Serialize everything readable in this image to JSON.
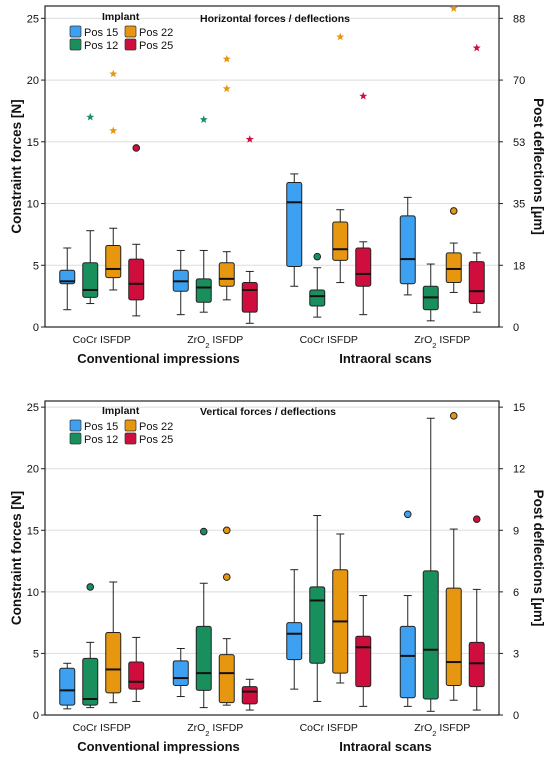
{
  "colors": {
    "Pos 15": "#3da0f0",
    "Pos 12": "#1a8f5e",
    "Pos 22": "#e6960f",
    "Pos 25": "#cf0e3e",
    "axis": "#222222",
    "grid": "#dddddd"
  },
  "chart_data": [
    {
      "type": "box",
      "title": "Horizontal forces / deflections",
      "legend_title": "Implant",
      "legend": [
        "Pos 15",
        "Pos 12",
        "Pos 22",
        "Pos 25"
      ],
      "ylabel": "Constraint forces [N]",
      "y2label": "Post deflections [µm]",
      "ylim": [
        0,
        26
      ],
      "yticks": [
        0,
        5,
        10,
        15,
        20,
        25
      ],
      "y2ticks": [
        "0",
        "18",
        "35",
        "53",
        "70",
        "88"
      ],
      "grid": true,
      "categories": [
        "CoCr ISFDP",
        "ZrO2 ISFDP",
        "CoCr ISFDP",
        "ZrO2 ISFDP"
      ],
      "category_labels": [
        {
          "main": "CoCr ISFDP",
          "sub": "",
          "rest": ""
        },
        {
          "main": "ZrO",
          "sub": "2",
          "rest": " ISFDP"
        },
        {
          "main": "CoCr ISFDP",
          "sub": "",
          "rest": ""
        },
        {
          "main": "ZrO",
          "sub": "2",
          "rest": " ISFDP"
        }
      ],
      "groups": [
        "Conventional impressions",
        "Intraoral scans"
      ],
      "series": [
        {
          "name": "Pos 15",
          "boxes": [
            {
              "min": 1.4,
              "q1": 3.5,
              "median": 3.7,
              "q3": 4.6,
              "max": 6.4,
              "outliers": []
            },
            {
              "min": 1.0,
              "q1": 2.9,
              "median": 3.7,
              "q3": 4.6,
              "max": 6.2,
              "outliers": []
            },
            {
              "min": 3.3,
              "q1": 4.9,
              "median": 10.1,
              "q3": 11.7,
              "max": 12.4,
              "outliers": []
            },
            {
              "min": 2.6,
              "q1": 3.5,
              "median": 5.5,
              "q3": 9.0,
              "max": 10.5,
              "outliers": []
            }
          ]
        },
        {
          "name": "Pos 12",
          "boxes": [
            {
              "min": 1.9,
              "q1": 2.4,
              "median": 3.0,
              "q3": 5.2,
              "max": 7.8,
              "outliers": [
                {
                  "value": 17.0,
                  "marker": "star"
                }
              ]
            },
            {
              "min": 1.2,
              "q1": 2.0,
              "median": 3.2,
              "q3": 3.9,
              "max": 6.2,
              "outliers": [
                {
                  "value": 16.8,
                  "marker": "star"
                }
              ]
            },
            {
              "min": 0.8,
              "q1": 1.7,
              "median": 2.5,
              "q3": 3.0,
              "max": 4.8,
              "outliers": [
                {
                  "value": 5.7,
                  "marker": "circle"
                }
              ]
            },
            {
              "min": 0.5,
              "q1": 1.4,
              "median": 2.4,
              "q3": 3.3,
              "max": 5.1,
              "outliers": []
            }
          ]
        },
        {
          "name": "Pos 22",
          "boxes": [
            {
              "min": 3.0,
              "q1": 4.0,
              "median": 4.7,
              "q3": 6.6,
              "max": 8.0,
              "outliers": [
                {
                  "value": 20.5,
                  "marker": "star"
                },
                {
                  "value": 15.9,
                  "marker": "star"
                }
              ]
            },
            {
              "min": 2.2,
              "q1": 3.3,
              "median": 3.9,
              "q3": 5.2,
              "max": 6.1,
              "outliers": [
                {
                  "value": 21.7,
                  "marker": "star"
                },
                {
                  "value": 19.3,
                  "marker": "star"
                }
              ]
            },
            {
              "min": 3.6,
              "q1": 5.4,
              "median": 6.3,
              "q3": 8.5,
              "max": 9.5,
              "outliers": [
                {
                  "value": 23.5,
                  "marker": "star"
                }
              ]
            },
            {
              "min": 2.8,
              "q1": 3.6,
              "median": 4.7,
              "q3": 6.0,
              "max": 6.8,
              "outliers": [
                {
                  "value": 9.4,
                  "marker": "circle"
                },
                {
                  "value": 25.8,
                  "marker": "star"
                }
              ]
            }
          ]
        },
        {
          "name": "Pos 25",
          "boxes": [
            {
              "min": 0.9,
              "q1": 2.2,
              "median": 3.5,
              "q3": 5.5,
              "max": 6.7,
              "outliers": [
                {
                  "value": 14.5,
                  "marker": "circle"
                }
              ]
            },
            {
              "min": 0.3,
              "q1": 1.2,
              "median": 3.0,
              "q3": 3.6,
              "max": 4.5,
              "outliers": [
                {
                  "value": 15.2,
                  "marker": "star"
                }
              ]
            },
            {
              "min": 1.0,
              "q1": 3.3,
              "median": 4.3,
              "q3": 6.4,
              "max": 6.9,
              "outliers": [
                {
                  "value": 18.7,
                  "marker": "star"
                }
              ]
            },
            {
              "min": 1.2,
              "q1": 1.9,
              "median": 2.9,
              "q3": 5.3,
              "max": 6.0,
              "outliers": [
                {
                  "value": 22.6,
                  "marker": "star"
                }
              ]
            }
          ]
        }
      ]
    },
    {
      "type": "box",
      "title": "Vertical forces / deflections",
      "legend_title": "Implant",
      "legend": [
        "Pos 15",
        "Pos 12",
        "Pos 22",
        "Pos 25"
      ],
      "ylabel": "Constraint forces [N]",
      "y2label": "Post deflections [µm]",
      "ylim": [
        0,
        25.5
      ],
      "yticks": [
        0,
        5,
        10,
        15,
        20,
        25
      ],
      "y2ticks": [
        "0",
        "3",
        "6",
        "9",
        "12",
        "15"
      ],
      "grid": true,
      "categories": [
        "CoCr ISFDP",
        "ZrO2 ISFDP",
        "CoCr ISFDP",
        "ZrO2 ISFDP"
      ],
      "category_labels": [
        {
          "main": "CoCr ISFDP",
          "sub": "",
          "rest": ""
        },
        {
          "main": "ZrO",
          "sub": "2",
          "rest": " ISFDP"
        },
        {
          "main": "CoCr ISFDP",
          "sub": "",
          "rest": ""
        },
        {
          "main": "ZrO",
          "sub": "2",
          "rest": " ISFDP"
        }
      ],
      "groups": [
        "Conventional impressions",
        "Intraoral scans"
      ],
      "series": [
        {
          "name": "Pos 15",
          "boxes": [
            {
              "min": 0.5,
              "q1": 0.8,
              "median": 2.0,
              "q3": 3.8,
              "max": 4.2,
              "outliers": []
            },
            {
              "min": 1.5,
              "q1": 2.4,
              "median": 3.0,
              "q3": 4.4,
              "max": 5.4,
              "outliers": []
            },
            {
              "min": 2.1,
              "q1": 4.5,
              "median": 6.6,
              "q3": 7.5,
              "max": 11.8,
              "outliers": []
            },
            {
              "min": 0.7,
              "q1": 1.4,
              "median": 4.8,
              "q3": 7.2,
              "max": 9.7,
              "outliers": [
                {
                  "value": 16.3,
                  "marker": "circle"
                }
              ]
            }
          ]
        },
        {
          "name": "Pos 12",
          "boxes": [
            {
              "min": 0.6,
              "q1": 0.8,
              "median": 1.3,
              "q3": 4.6,
              "max": 5.9,
              "outliers": [
                {
                  "value": 10.4,
                  "marker": "circle"
                }
              ]
            },
            {
              "min": 0.6,
              "q1": 2.0,
              "median": 3.4,
              "q3": 7.2,
              "max": 10.7,
              "outliers": [
                {
                  "value": 14.9,
                  "marker": "circle"
                }
              ]
            },
            {
              "min": 1.1,
              "q1": 4.2,
              "median": 9.3,
              "q3": 10.4,
              "max": 16.2,
              "outliers": []
            },
            {
              "min": 0.3,
              "q1": 1.3,
              "median": 5.3,
              "q3": 11.7,
              "max": 24.1,
              "outliers": []
            }
          ]
        },
        {
          "name": "Pos 22",
          "boxes": [
            {
              "min": 1.0,
              "q1": 1.8,
              "median": 3.7,
              "q3": 6.7,
              "max": 10.8,
              "outliers": []
            },
            {
              "min": 0.8,
              "q1": 1.0,
              "median": 3.4,
              "q3": 4.9,
              "max": 6.2,
              "outliers": [
                {
                  "value": 15.0,
                  "marker": "circle"
                },
                {
                  "value": 11.2,
                  "marker": "circle"
                }
              ]
            },
            {
              "min": 2.6,
              "q1": 3.4,
              "median": 7.6,
              "q3": 11.8,
              "max": 14.7,
              "outliers": []
            },
            {
              "min": 1.2,
              "q1": 2.4,
              "median": 4.3,
              "q3": 10.3,
              "max": 15.1,
              "outliers": [
                {
                  "value": 24.3,
                  "marker": "circle"
                }
              ]
            }
          ]
        },
        {
          "name": "Pos 25",
          "boxes": [
            {
              "min": 1.1,
              "q1": 2.1,
              "median": 2.7,
              "q3": 4.3,
              "max": 6.3,
              "outliers": []
            },
            {
              "min": 0.4,
              "q1": 0.9,
              "median": 1.9,
              "q3": 2.3,
              "max": 2.9,
              "outliers": []
            },
            {
              "min": 0.7,
              "q1": 2.3,
              "median": 5.5,
              "q3": 6.4,
              "max": 9.7,
              "outliers": []
            },
            {
              "min": 0.4,
              "q1": 2.3,
              "median": 4.2,
              "q3": 5.9,
              "max": 10.2,
              "outliers": [
                {
                  "value": 15.9,
                  "marker": "circle"
                }
              ]
            }
          ]
        }
      ]
    }
  ]
}
